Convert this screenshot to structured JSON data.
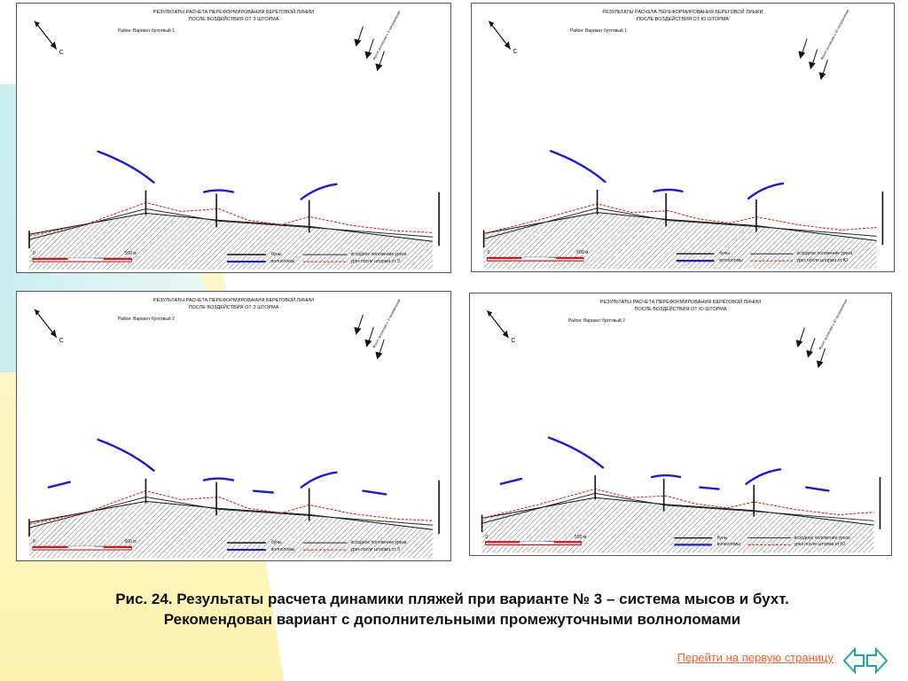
{
  "panels": [
    {
      "title_line1": "РЕЗУЛЬТАТЫ РАСЧЕТА ПЕРЕФОРМИРОВАНИЯ БЕРЕГОВОЙ ЛИНИИ",
      "title_line2": "ПОСЛЕ ВОЗДЕЙСТВИЯ ОТ З ШТОРМА",
      "region": "Район: Вариант бухтовый 1",
      "wave_label": "Фронт волнения с З направления"
    },
    {
      "title_line1": "РЕЗУЛЬТАТЫ РАСЧЕТА ПЕРЕФОРМИРОВАНИЯ БЕРЕГОВОЙ ЛИНИИ",
      "title_line2": "ПОСЛЕ ВОЗДЕЙСТВИЯ ОТ Ю ШТОРМА",
      "region": "Район: Вариант бухтовый 1",
      "wave_label": "Фронт волнения с Ю направления"
    },
    {
      "title_line1": "РЕЗУЛЬТАТЫ РАСЧЕТА ПЕРЕФОРМИРОВАНИЯ БЕРЕГОВОЙ ЛИНИИ",
      "title_line2": "ПОСЛЕ ВОЗДЕЙСТВИЯ ОТ З ШТОРМА",
      "region": "Район: Вариант бухтовый 2",
      "wave_label": "Фронт волнения с З направления"
    },
    {
      "title_line1": "РЕЗУЛЬТАТЫ РАСЧЕТА ПЕРЕФОРМИРОВАНИЯ БЕРЕГОВОЙ ЛИНИИ",
      "title_line2": "ПОСЛЕ ВОЗДЕЙСТВИЯ ОТ Ю ШТОРМА",
      "region": "Район: Вариант бухтовый 2",
      "wave_label": "Фронт волнения с Ю направления"
    }
  ],
  "legend": {
    "scale_zero": "0",
    "scale_500": "500 м",
    "groins": "буны",
    "breakwaters": "волноломы",
    "initial": "исходное положение уреза",
    "after_west": "урез после шторма от З",
    "after_south": "урез после шторма от Ю"
  },
  "north_label": "С",
  "caption_line1": "Рис. 24. Результаты расчета динамики пляжей при  варианте № 3 – система мысов и бухт.",
  "caption_line2": "Рекомендован вариант с дополнительными промежуточными волноломами",
  "nav_link": "Перейти на первую страницу",
  "colors": {
    "breakwater": "#1a1adf",
    "after_storm": "#e0141a",
    "initial": "#1f2a20",
    "background_left": "#fdf8c6",
    "background_band": "#cdeef6",
    "link": "#ff5a2a",
    "nav_arrows": "#1fa6b5"
  }
}
